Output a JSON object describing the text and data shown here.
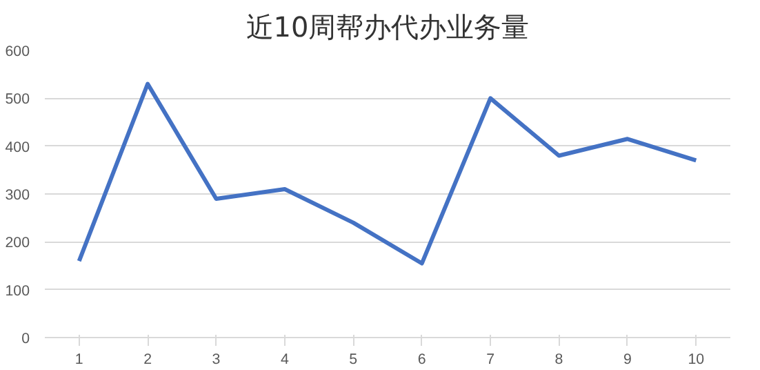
{
  "chart_data": {
    "type": "line",
    "title": "近10周帮办代办业务量",
    "categories": [
      "1",
      "2",
      "3",
      "4",
      "5",
      "6",
      "7",
      "8",
      "9",
      "10"
    ],
    "series": [
      {
        "color": "#4472c4",
        "values": [
          160,
          530,
          290,
          310,
          240,
          155,
          500,
          380,
          415,
          370
        ]
      }
    ],
    "ylim": [
      0,
      600
    ],
    "yticks": [
      0,
      100,
      200,
      300,
      400,
      500,
      600
    ],
    "grid": "y",
    "marker": "none",
    "line_style": "solid"
  }
}
